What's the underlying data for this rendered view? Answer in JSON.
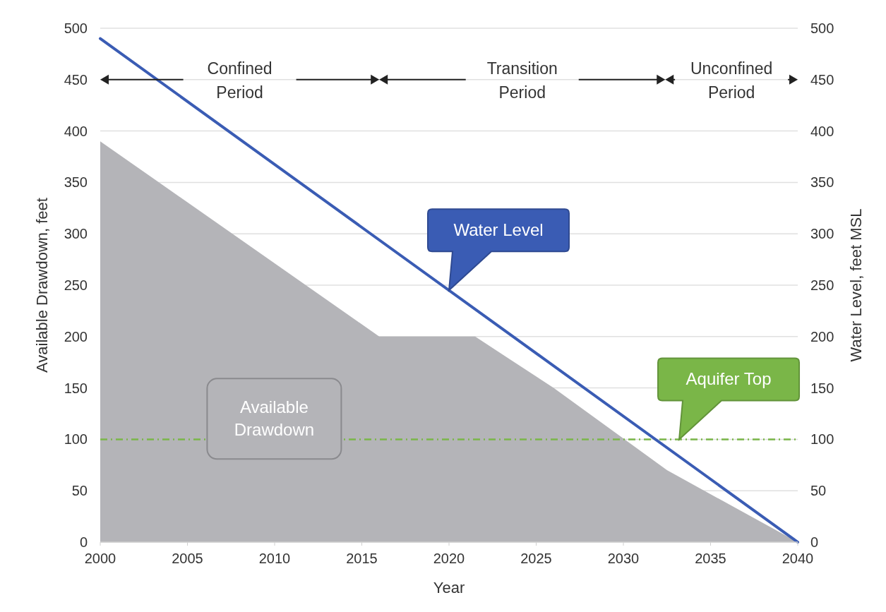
{
  "chart_data": {
    "type": "area",
    "xlabel": "Year",
    "ylabel": "Available Drawdown, feet",
    "y2label": "Water Level, feet MSL",
    "xlim": [
      2000,
      2040
    ],
    "xticks": [
      2000,
      2005,
      2010,
      2015,
      2020,
      2025,
      2030,
      2035,
      2040
    ],
    "ylim": [
      0,
      500
    ],
    "yticks": [
      0,
      50,
      100,
      150,
      200,
      250,
      300,
      350,
      400,
      450,
      500
    ],
    "y2lim": [
      0,
      500
    ],
    "y2ticks": [
      0,
      50,
      100,
      150,
      200,
      250,
      300,
      350,
      400,
      450,
      500
    ],
    "grid": "y",
    "legend": false,
    "series": [
      {
        "name": "Available Drawdown",
        "color": "#b4b4b8",
        "x": [
          2000,
          2016,
          2021.5,
          2026,
          2032.5,
          2040
        ],
        "values": [
          390,
          200,
          200,
          150,
          70,
          0
        ]
      },
      {
        "name": "Water Level",
        "type": "line",
        "color": "#3a5cb4",
        "x": [
          2000,
          2040
        ],
        "values": [
          490,
          0
        ]
      }
    ],
    "ref_lines": [
      {
        "axis": "y",
        "value": 100,
        "label": "Aquifer Top",
        "color": "#7ab648",
        "line_style": "dashed"
      }
    ],
    "annotations": [
      "Confined Period",
      "Transition Period",
      "Unconfined Period"
    ]
  }
}
